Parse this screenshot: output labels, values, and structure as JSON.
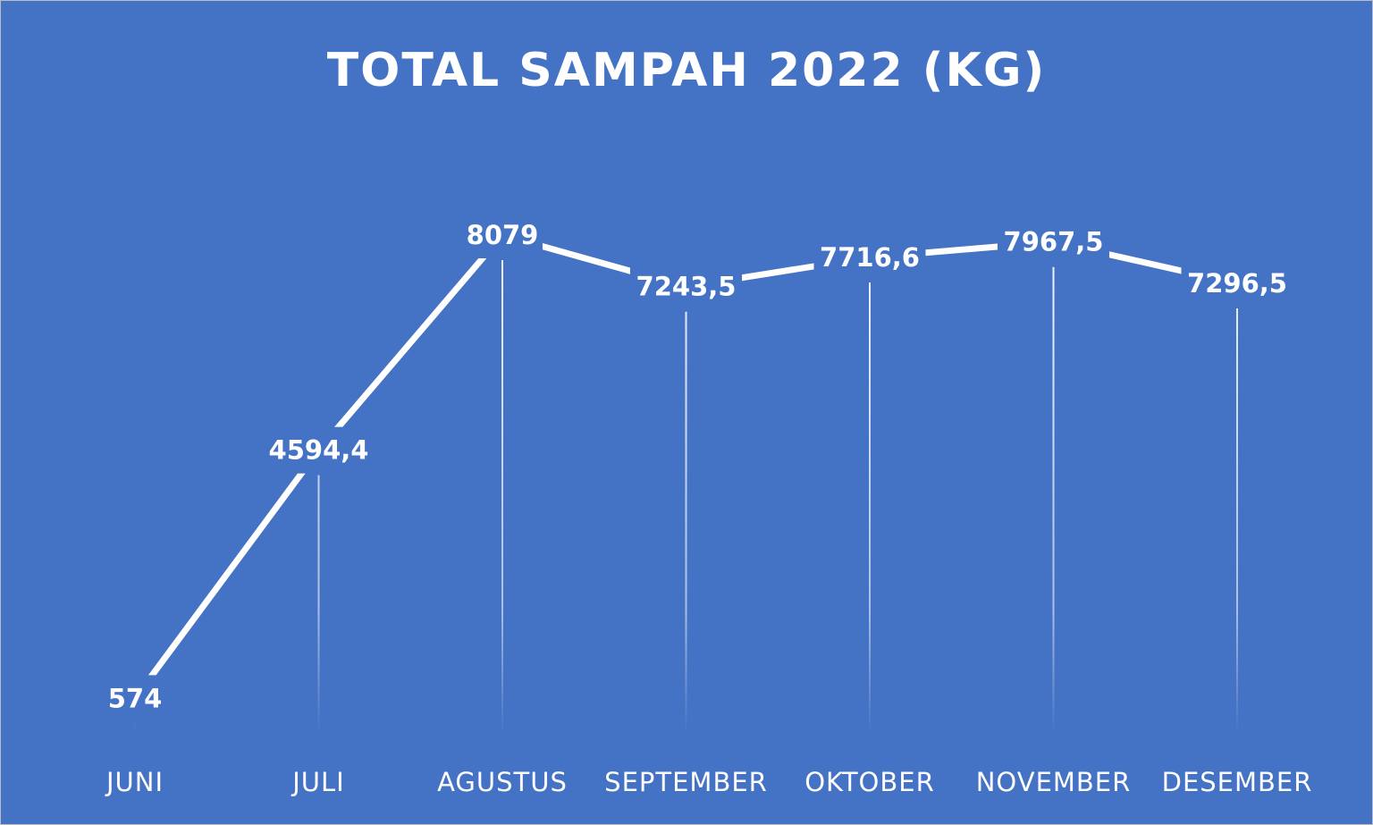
{
  "chart_data": {
    "type": "line",
    "title": "TOTAL SAMPAH 2022 (KG)",
    "categories": [
      "JUNI",
      "JULI",
      "AGUSTUS",
      "SEPTEMBER",
      "OKTOBER",
      "NOVEMBER",
      "DESEMBER"
    ],
    "series": [
      {
        "values": [
          574,
          4594.4,
          8079,
          7243.5,
          7716.6,
          7967.5,
          7296.5
        ]
      }
    ],
    "data_labels": [
      "574",
      "4594,4",
      "8079",
      "7243,5",
      "7716,6",
      "7967,5",
      "7296,5"
    ],
    "xlabel": "",
    "ylabel": "",
    "ylim": [
      0,
      9000
    ],
    "grid": false,
    "drop_lines": true,
    "legend": "none",
    "colors": {
      "background": "#4472c4",
      "line": "#ffffff",
      "text": "#ffffff"
    }
  }
}
